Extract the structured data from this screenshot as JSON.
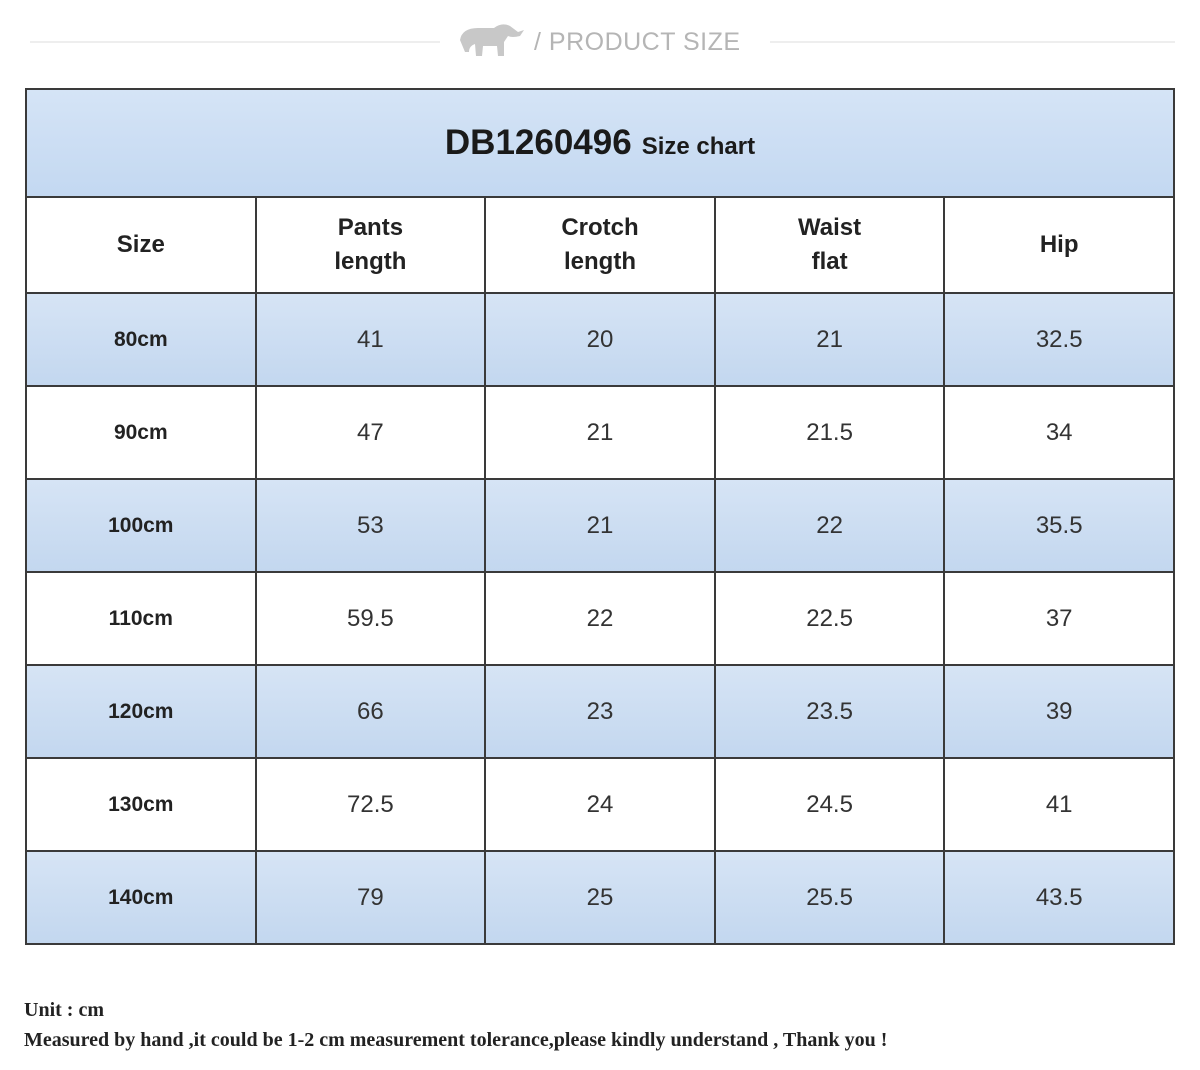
{
  "header": {
    "title": "/ PRODUCT SIZE"
  },
  "table": {
    "code": "DB1260496",
    "caption": "Size chart",
    "columns": [
      "Size",
      "Pants\nlength",
      "Crotch\nlength",
      "Waist\nflat",
      "Hip"
    ],
    "rows": [
      [
        "80cm",
        41,
        20,
        21,
        32.5
      ],
      [
        "90cm",
        47,
        21,
        21.5,
        34
      ],
      [
        "100cm",
        53,
        21,
        22,
        35.5
      ],
      [
        "110cm",
        59.5,
        22,
        22.5,
        37
      ],
      [
        "120cm",
        66,
        23,
        23.5,
        39
      ],
      [
        "130cm",
        72.5,
        24,
        24.5,
        41
      ],
      [
        "140cm",
        79,
        25,
        25.5,
        43.5
      ]
    ]
  },
  "footer": {
    "unit": "Unit : cm",
    "note": "Measured by hand ,it could be 1-2 cm measurement tolerance,please kindly understand , Thank you !"
  }
}
